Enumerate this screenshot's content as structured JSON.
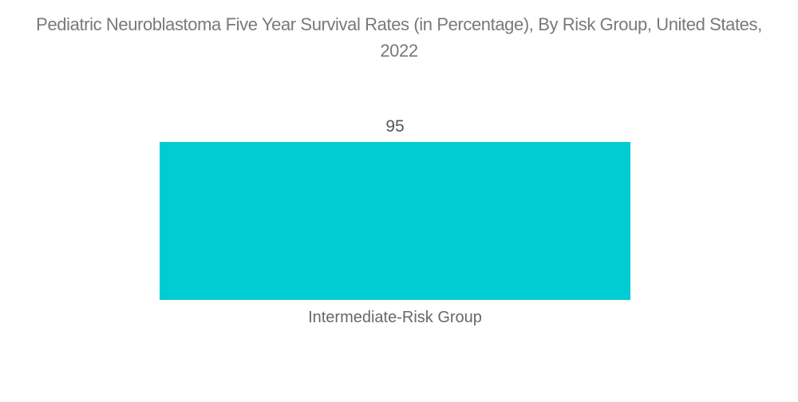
{
  "page": {
    "background_color": "#ffffff"
  },
  "chart_data": {
    "type": "bar",
    "title": "Pediatric Neuroblastoma Five Year Survival Rates (in Percentage), By Risk Group, United States, 2022",
    "categories": [
      "Intermediate-Risk Group"
    ],
    "values": [
      95
    ],
    "value_labels": [
      "95"
    ],
    "xlabel": "",
    "ylabel": "",
    "ylim": [
      0,
      100
    ],
    "grid": false,
    "legend": false,
    "axes_visible": false,
    "bar_color": "#00cdd3",
    "title_color": "#77797c",
    "value_label_color": "#54565a",
    "category_label_color": "#66686b"
  }
}
